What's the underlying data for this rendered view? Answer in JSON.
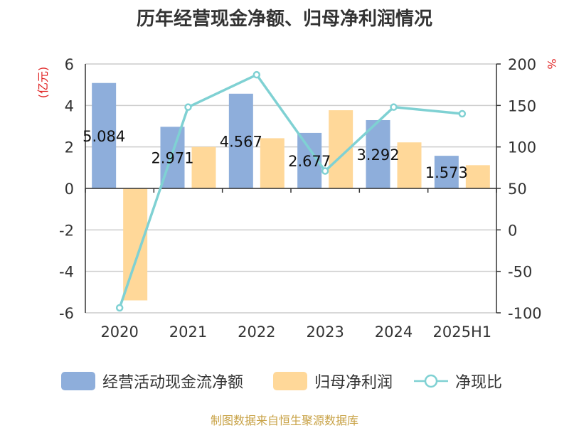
{
  "title": "历年经营现金净额、归母净利润情况",
  "source": "制图数据来自恒生聚源数据库",
  "y_left_unit": "(亿元)",
  "y_right_unit": "%",
  "chart_data": {
    "type": "bar",
    "categories": [
      "2020",
      "2021",
      "2022",
      "2023",
      "2024",
      "2025H1"
    ],
    "series": [
      {
        "name": "经营活动现金流净额",
        "type": "bar",
        "axis": "left",
        "color": "#8eaedb",
        "values": [
          5.084,
          2.971,
          4.567,
          2.677,
          3.292,
          1.573
        ],
        "labels": [
          "5.084",
          "2.971",
          "4.567",
          "2.677",
          "3.292",
          "1.573"
        ]
      },
      {
        "name": "归母净利润",
        "type": "bar",
        "axis": "left",
        "color": "#ffd899",
        "values": [
          -5.4,
          2.0,
          2.42,
          3.77,
          2.22,
          1.12
        ]
      },
      {
        "name": "净现比",
        "type": "line",
        "axis": "right",
        "color": "#7fd1d3",
        "values": [
          -94,
          148,
          187,
          71,
          148,
          140
        ]
      }
    ],
    "y_left": {
      "min": -6,
      "max": 6,
      "ticks": [
        6,
        4,
        2,
        0,
        -2,
        -4,
        -6
      ]
    },
    "y_right": {
      "min": -100,
      "max": 200,
      "ticks": [
        200,
        150,
        100,
        50,
        0,
        -50,
        -100
      ]
    },
    "grid": true,
    "legend_position": "bottom"
  }
}
